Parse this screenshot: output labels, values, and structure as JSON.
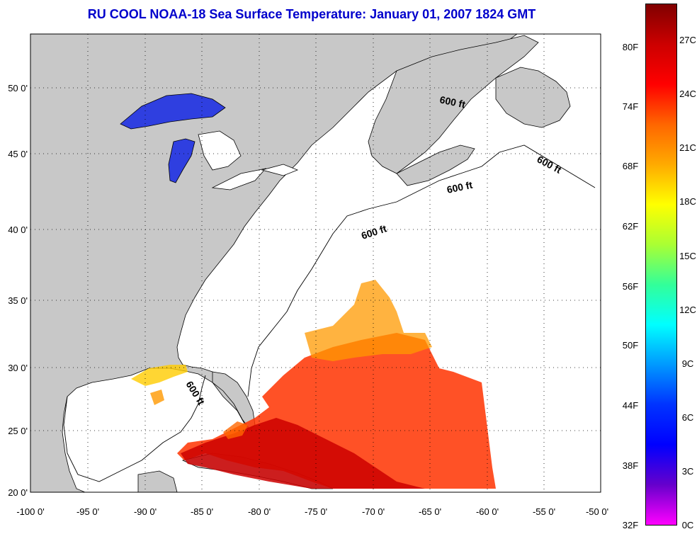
{
  "title": "RU COOL  NOAA-18  Sea Surface Temperature:  January 01, 2007 1824 GMT",
  "map": {
    "lat_labels": [
      "50 0'",
      "45 0'",
      "40 0'",
      "35 0'",
      "30 0'",
      "25 0'",
      "20 0'"
    ],
    "lon_labels": [
      "-100 0'",
      "-95 0'",
      "-90 0'",
      "-85 0'",
      "-80 0'",
      "-75 0'",
      "-70 0'",
      "-65 0'",
      "-60 0'",
      "-55 0'",
      "-50 0'"
    ],
    "depth_contour_label": "600 ft",
    "colors": {
      "land": "#c8c8c8",
      "ocean": "#ffffff",
      "grid": "#000000",
      "title": "#0000cc"
    }
  },
  "colorbar": {
    "fahrenheit_labels": [
      "80F",
      "74F",
      "68F",
      "62F",
      "56F",
      "50F",
      "44F",
      "38F",
      "32F"
    ],
    "celsius_labels": [
      "27C",
      "24C",
      "21C",
      "18C",
      "15C",
      "12C",
      "9C",
      "6C",
      "3C",
      "0C"
    ],
    "gradient": [
      "#800000",
      "#cc0000",
      "#ff0000",
      "#ff6600",
      "#ffaa00",
      "#ffff00",
      "#aaff33",
      "#33ff99",
      "#00ffff",
      "#0099ff",
      "#0033ff",
      "#0000ff",
      "#6600cc",
      "#ff00ff"
    ]
  }
}
